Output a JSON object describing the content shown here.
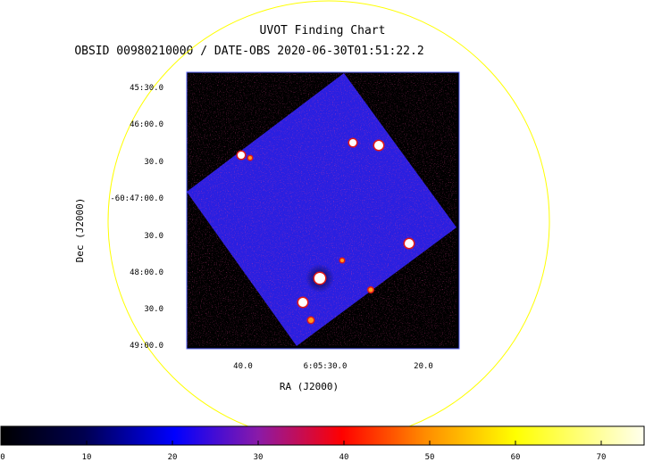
{
  "chart_data": {
    "type": "heatmap",
    "title": "UVOT Finding Chart",
    "subtitle": "OBSID 00980210000 / DATE-OBS 2020-06-30T01:51:22.2",
    "xlabel": "RA (J2000)",
    "ylabel": "Dec (J2000)",
    "x_ticks": [
      "40.0",
      "6:05:30.0",
      "20.0"
    ],
    "y_ticks": [
      "45:30.0",
      "46:00.0",
      "30.0",
      "-60:47:00.0",
      "30.0",
      "48:00.0",
      "30.0",
      "49:00.0"
    ],
    "colorbar": {
      "ticks": [
        "0",
        "10",
        "20",
        "30",
        "40",
        "50",
        "60",
        "70"
      ],
      "range": [
        0,
        75
      ]
    },
    "colors": {
      "background": "#000000",
      "field": "#2a1fe0",
      "circle": "#ffff00",
      "frame": "#5a64ff"
    },
    "grid": false
  }
}
